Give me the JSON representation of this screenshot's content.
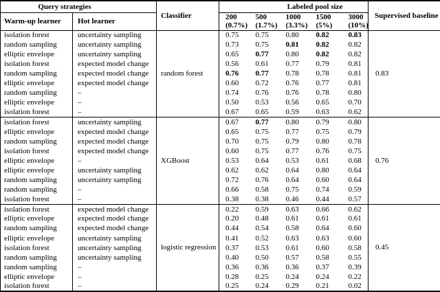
{
  "colors": {
    "text": "#000000",
    "background": "#ffffff",
    "border": "#000000"
  },
  "table": {
    "header": {
      "query_strategies": "Query strategies",
      "warmup": "Warm-up learner",
      "hot": "Hot learner",
      "classifier": "Classifier",
      "pool_size": "Labeled pool size",
      "pool_cols": [
        {
          "n": "200",
          "p": "(0.7%)"
        },
        {
          "n": "500",
          "p": "(1.7%)"
        },
        {
          "n": "1000",
          "p": "(3.3%)"
        },
        {
          "n": "1500",
          "p": "(5%)"
        },
        {
          "n": "3000",
          "p": "(10%)"
        }
      ],
      "baseline": "Supervised baseline"
    },
    "blocks": [
      {
        "classifier": "random forest",
        "baseline": "0.83",
        "rows": [
          {
            "warmup": "isolation forest",
            "hot": "uncertainty sampling",
            "values": [
              "0.75",
              "0.75",
              "0.80",
              "0.82",
              "0.83"
            ],
            "bold": [
              0,
              0,
              0,
              1,
              1
            ]
          },
          {
            "warmup": "random sampling",
            "hot": "uncertainty sampling",
            "values": [
              "0.73",
              "0.75",
              "0.81",
              "0.82",
              "0.82"
            ],
            "bold": [
              0,
              0,
              1,
              1,
              0
            ]
          },
          {
            "warmup": "elliptic envelope",
            "hot": "uncertainty sampling",
            "values": [
              "0.65",
              "0.77",
              "0.80",
              "0.82",
              "0.82"
            ],
            "bold": [
              0,
              1,
              0,
              1,
              0
            ]
          },
          {
            "warmup": "isolation forest",
            "hot": "expected model change",
            "values": [
              "0.56",
              "0.61",
              "0.77",
              "0.79",
              "0.81"
            ],
            "bold": [
              0,
              0,
              0,
              0,
              0
            ]
          },
          {
            "warmup": "random sampling",
            "hot": "expected model change",
            "values": [
              "0.76",
              "0.77",
              "0.78",
              "0.78",
              "0.81"
            ],
            "bold": [
              1,
              1,
              0,
              0,
              0
            ]
          },
          {
            "warmup": "elliptic envelope",
            "hot": "expected model change",
            "values": [
              "0.60",
              "0.72",
              "0.76",
              "0.77",
              "0.81"
            ],
            "bold": [
              0,
              0,
              0,
              0,
              0
            ]
          },
          {
            "warmup": "random sampling",
            "hot": "–",
            "values": [
              "0.74",
              "0.76",
              "0.76",
              "0.78",
              "0.80"
            ],
            "bold": [
              0,
              0,
              0,
              0,
              0
            ]
          },
          {
            "warmup": "elliptic envelope",
            "hot": "–",
            "values": [
              "0.50",
              "0.53",
              "0.56",
              "0.65",
              "0.70"
            ],
            "bold": [
              0,
              0,
              0,
              0,
              0
            ]
          },
          {
            "warmup": "isolation forest",
            "hot": "–",
            "values": [
              "0.67",
              "0.65",
              "0.59",
              "0.63",
              "0.62"
            ],
            "bold": [
              0,
              0,
              0,
              0,
              0
            ]
          }
        ]
      },
      {
        "classifier": "XGBoost",
        "baseline": "0.76",
        "rows": [
          {
            "warmup": "isolation forest",
            "hot": "uncertainty sampling",
            "values": [
              "0.67",
              "0.77",
              "0.80",
              "0.79",
              "0.80"
            ],
            "bold": [
              0,
              1,
              0,
              0,
              0
            ]
          },
          {
            "warmup": "elliptic envelope",
            "hot": "expected model change",
            "values": [
              "0.65",
              "0.75",
              "0.77",
              "0.75",
              "0.79"
            ],
            "bold": [
              0,
              0,
              0,
              0,
              0
            ]
          },
          {
            "warmup": "random sampling",
            "hot": "expected model change",
            "values": [
              "0.70",
              "0.75",
              "0.79",
              "0.80",
              "0.78"
            ],
            "bold": [
              0,
              0,
              0,
              0,
              0
            ]
          },
          {
            "warmup": "isolation forest",
            "hot": "expected model change",
            "values": [
              "0.60",
              "0.75",
              "0.77",
              "0.76",
              "0.75"
            ],
            "bold": [
              0,
              0,
              0,
              0,
              0
            ]
          },
          {
            "warmup": "elliptic envelope",
            "hot": "–",
            "values": [
              "0.53",
              "0.64",
              "0.53",
              "0.61",
              "0.68"
            ],
            "bold": [
              0,
              0,
              0,
              0,
              0
            ]
          },
          {
            "warmup": "elliptic envelope",
            "hot": "uncertainty sampling",
            "values": [
              "0.62",
              "0.62",
              "0.64",
              "0.80",
              "0.64"
            ],
            "bold": [
              0,
              0,
              0,
              0,
              0
            ]
          },
          {
            "warmup": "random sampling",
            "hot": "uncertainty sampling",
            "values": [
              "0.72",
              "0.76",
              "0.64",
              "0.60",
              "0.64"
            ],
            "bold": [
              0,
              0,
              0,
              0,
              0
            ]
          },
          {
            "warmup": "random sampling",
            "hot": "–",
            "values": [
              "0.66",
              "0.58",
              "0.75",
              "0.74",
              "0.59"
            ],
            "bold": [
              0,
              0,
              0,
              0,
              0
            ]
          },
          {
            "warmup": "isolation forest",
            "hot": "–",
            "values": [
              "0.38",
              "0.38",
              "0.46",
              "0.44",
              "0.57"
            ],
            "bold": [
              0,
              0,
              0,
              0,
              0
            ]
          }
        ]
      },
      {
        "classifier": "logistic regression",
        "baseline": "0.45",
        "rows": [
          {
            "warmup": "isolation forest",
            "hot": "expected model change",
            "values": [
              "0.22",
              "0.59",
              "0.63",
              "0.66",
              "0.62"
            ],
            "bold": [
              0,
              0,
              0,
              0,
              0
            ]
          },
          {
            "warmup": "elliptic envelope",
            "hot": "expected model change",
            "values": [
              "0.20",
              "0.48",
              "0.61",
              "0.61",
              "0.61"
            ],
            "bold": [
              0,
              0,
              0,
              0,
              0
            ]
          },
          {
            "warmup": "random sampling",
            "hot": "expected model change",
            "values": [
              "0.44",
              "0.54",
              "0.58",
              "0.64",
              "0.60"
            ],
            "bold": [
              0,
              0,
              0,
              0,
              0
            ]
          },
          {
            "warmup": "elliptic envelope",
            "hot": "uncertainty sampling",
            "values": [
              "0.41",
              "0.52",
              "0.63",
              "0.63",
              "0.60"
            ],
            "bold": [
              0,
              0,
              0,
              0,
              0
            ]
          },
          {
            "warmup": "isolation forest",
            "hot": "uncertainty sampling",
            "values": [
              "0.37",
              "0.53",
              "0.61",
              "0.60",
              "0.58"
            ],
            "bold": [
              0,
              0,
              0,
              0,
              0
            ]
          },
          {
            "warmup": "random sampling",
            "hot": "uncertainty sampling",
            "values": [
              "0.40",
              "0.50",
              "0.57",
              "0.58",
              "0.55"
            ],
            "bold": [
              0,
              0,
              0,
              0,
              0
            ]
          },
          {
            "warmup": "random sampling",
            "hot": "–",
            "values": [
              "0.36",
              "0.36",
              "0.36",
              "0.37",
              "0.39"
            ],
            "bold": [
              0,
              0,
              0,
              0,
              0
            ]
          },
          {
            "warmup": "elliptic envelope",
            "hot": "–",
            "values": [
              "0.28",
              "0.25",
              "0.24",
              "0.24",
              "0.22"
            ],
            "bold": [
              0,
              0,
              0,
              0,
              0
            ]
          },
          {
            "warmup": "isolation forest",
            "hot": "–",
            "values": [
              "0.25",
              "0.24",
              "0.29",
              "0.21",
              "0.02"
            ],
            "bold": [
              0,
              0,
              0,
              0,
              0
            ]
          }
        ]
      }
    ]
  }
}
